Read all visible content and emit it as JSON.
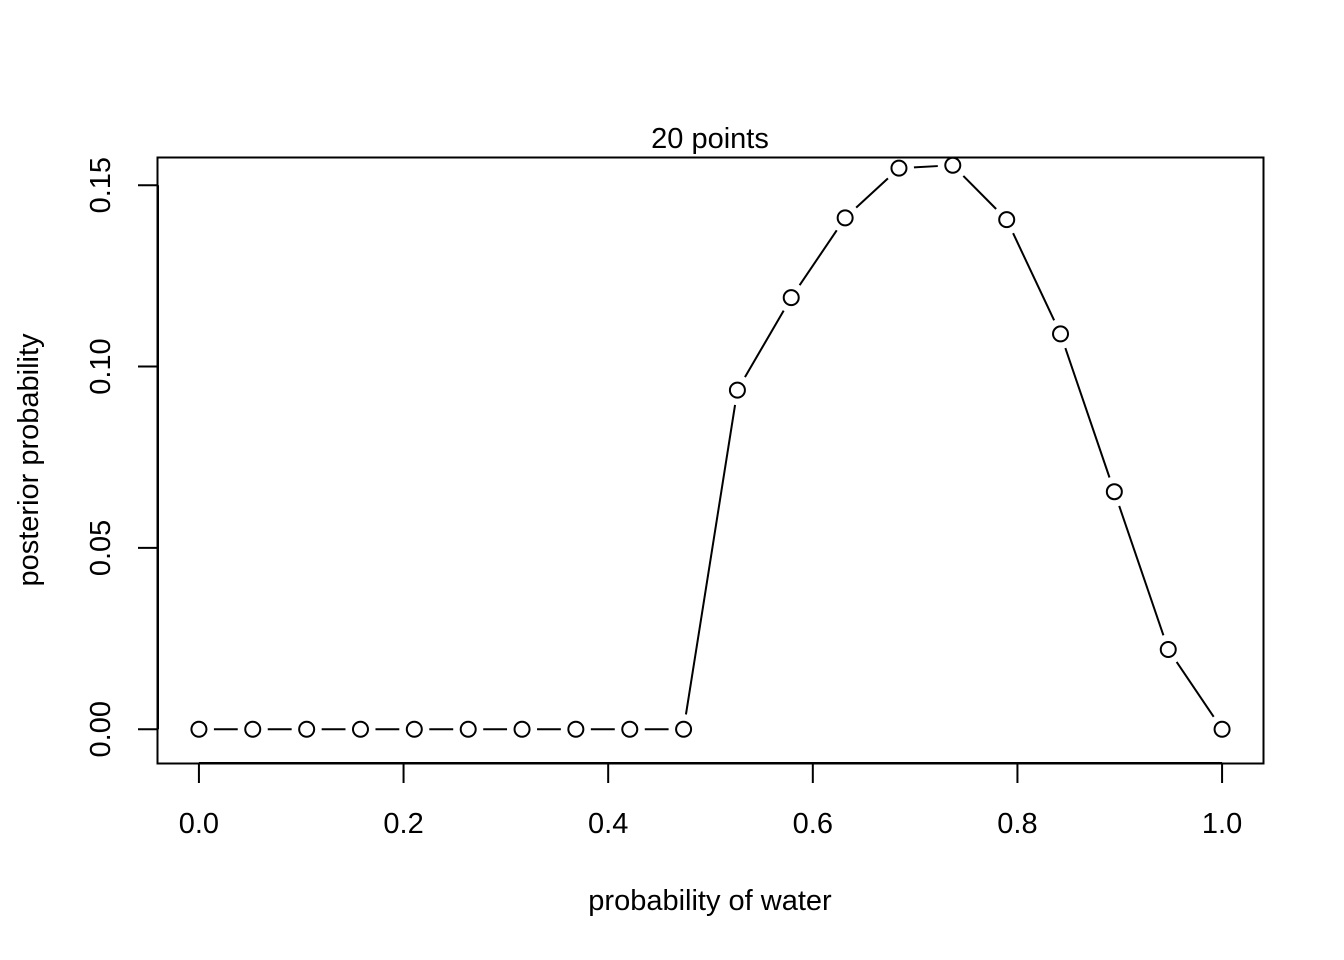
{
  "chart_data": {
    "type": "line",
    "title": "20 points",
    "xlabel": "probability of water",
    "ylabel": "posterior probability",
    "xlim": [
      -0.04,
      1.04
    ],
    "ylim": [
      -0.0093,
      0.1575
    ],
    "x_ticks": [
      0.0,
      0.2,
      0.4,
      0.6,
      0.8,
      1.0
    ],
    "x_tick_labels": [
      "0.0",
      "0.2",
      "0.4",
      "0.6",
      "0.8",
      "1.0"
    ],
    "y_ticks": [
      0.0,
      0.05,
      0.1,
      0.15
    ],
    "y_tick_labels": [
      "0.00",
      "0.05",
      "0.10",
      "0.15"
    ],
    "grid": false,
    "marker": "open-circle",
    "series": [
      {
        "x": [
          0.0,
          0.0526,
          0.1053,
          0.1579,
          0.2105,
          0.2632,
          0.3158,
          0.3684,
          0.4211,
          0.4737,
          0.5263,
          0.5789,
          0.6316,
          0.6842,
          0.7368,
          0.7895,
          0.8421,
          0.8947,
          0.9474,
          1.0
        ],
        "y": [
          0.0,
          0.0,
          0.0,
          0.0,
          0.0,
          0.0,
          0.0,
          0.0,
          0.0,
          0.0,
          0.0935,
          0.119,
          0.141,
          0.1547,
          0.1555,
          0.1405,
          0.109,
          0.0655,
          0.022,
          0.0
        ]
      }
    ]
  }
}
